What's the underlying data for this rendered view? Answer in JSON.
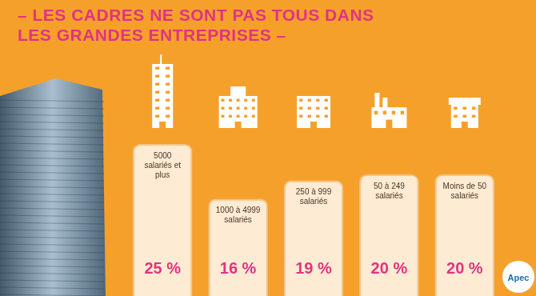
{
  "chart_data": {
    "type": "bar",
    "title": "– LES CADRES NE SONT PAS TOUS DANS LES GRANDES ENTREPRISES –",
    "categories": [
      "5000 salariés et plus",
      "1000 à 4999 salariés",
      "250 à 999 salariés",
      "50 à 249 salariés",
      "Moins de 50 salariés"
    ],
    "values": [
      25,
      16,
      19,
      20,
      20
    ],
    "value_labels": [
      "25 %",
      "16 %",
      "19 %",
      "20 %",
      "20 %"
    ],
    "color": "#fdebd3",
    "ylim": [
      0,
      25
    ],
    "grid": false,
    "tick_labels": false,
    "data_labels": true,
    "annotations": [
      "Apec"
    ]
  }
}
